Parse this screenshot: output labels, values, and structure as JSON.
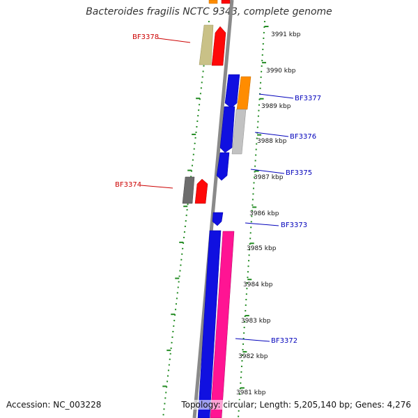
{
  "title": "Bacteroides fragilis NCTC 9343, complete genome",
  "accession": "Accession: NC_003228",
  "summary": "Topology: circular; Length: 5,205,140 bp; Genes: 4,276",
  "colors": {
    "forward_label": "#0000bb",
    "reverse_label": "#cc0000",
    "backbone": "#8a8a8a",
    "ticks": "#228B22",
    "blue": "#1010e0",
    "red": "#ff0808",
    "orange": "#ff8c00",
    "khaki": "#c9c187",
    "gray": "#c2c2c2",
    "darkgray": "#6d6d6d",
    "pink": "#ff1493"
  },
  "scale_labels": [
    "3991 kbp",
    "3990 kbp",
    "3989 kbp",
    "3988 kbp",
    "3987 kbp",
    "3986 kbp",
    "3985 kbp",
    "3984 kbp",
    "3983 kbp",
    "3982 kbp",
    "3981 kbp"
  ],
  "gene_labels": [
    {
      "name": "BF3378",
      "strand": "reverse"
    },
    {
      "name": "BF3377",
      "strand": "forward"
    },
    {
      "name": "BF3376",
      "strand": "forward"
    },
    {
      "name": "BF3375",
      "strand": "forward"
    },
    {
      "name": "BF3374",
      "strand": "reverse"
    },
    {
      "name": "BF3373",
      "strand": "forward"
    },
    {
      "name": "BF3372",
      "strand": "forward"
    }
  ],
  "features": [
    {
      "name": "top-orange",
      "color": "orange",
      "lane": 0
    },
    {
      "name": "top-red",
      "color": "red",
      "lane": 1
    },
    {
      "name": "khaki-block",
      "color": "khaki",
      "lane": 0
    },
    {
      "name": "red-block-1",
      "color": "red",
      "lane": 1
    },
    {
      "name": "blue-block-1",
      "color": "blue",
      "lane": 2
    },
    {
      "name": "orange-block",
      "color": "orange",
      "lane": 3
    },
    {
      "name": "blue-block-2",
      "color": "blue",
      "lane": 2
    },
    {
      "name": "gray-block",
      "color": "gray",
      "lane": 3
    },
    {
      "name": "blue-block-3",
      "color": "blue",
      "lane": 2
    },
    {
      "name": "darkgray-block",
      "color": "darkgray",
      "lane": 0
    },
    {
      "name": "red-block-2",
      "color": "red",
      "lane": 1
    },
    {
      "name": "blue-block-4",
      "color": "blue",
      "lane": 2
    },
    {
      "name": "blue-block-long",
      "color": "blue",
      "lane": 2
    },
    {
      "name": "pink-block-long",
      "color": "pink",
      "lane": 3
    }
  ]
}
